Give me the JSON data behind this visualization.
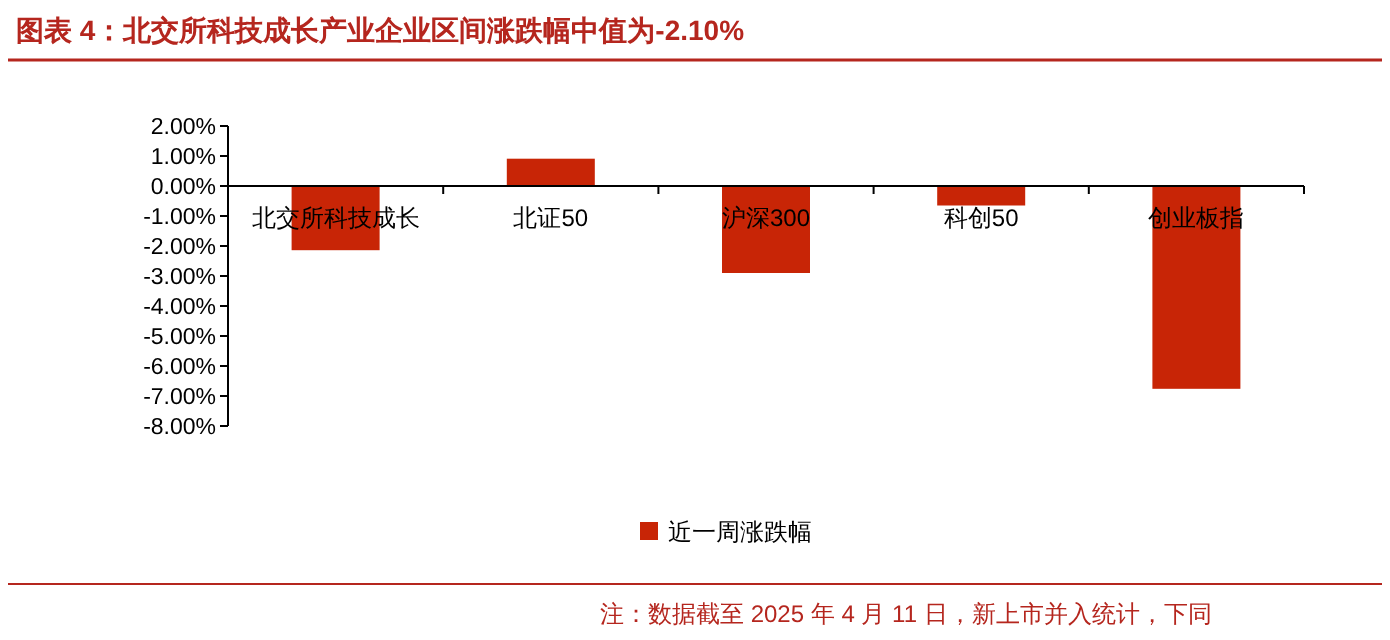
{
  "chart_data": {
    "type": "bar",
    "title": "图表 4：北交所科技成长产业企业区间涨跌幅中值为-2.10%",
    "categories": [
      "北交所科技成长",
      "北证50",
      "沪深300",
      "科创50",
      "创业板指"
    ],
    "series": [
      {
        "name": "近一周涨跌幅",
        "color": "#c82506",
        "values": [
          -2.14,
          0.91,
          -2.9,
          -0.65,
          -6.76
        ]
      }
    ],
    "ylim": [
      -8,
      2
    ],
    "yticks": [
      {
        "value": 2,
        "label": "2.00%"
      },
      {
        "value": 1,
        "label": "1.00%"
      },
      {
        "value": 0,
        "label": "0.00%"
      },
      {
        "value": -1,
        "label": "-1.00%"
      },
      {
        "value": -2,
        "label": "-2.00%"
      },
      {
        "value": -3,
        "label": "-3.00%"
      },
      {
        "value": -4,
        "label": "-4.00%"
      },
      {
        "value": -5,
        "label": "-5.00%"
      },
      {
        "value": -6,
        "label": "-6.00%"
      },
      {
        "value": -7,
        "label": "-7.00%"
      },
      {
        "value": -8,
        "label": "-8.00%"
      }
    ],
    "grid": false,
    "legend": "bottom",
    "annotations": [
      "注：数据截至 2025 年 4 月 11 日，新上市并入统计，下同"
    ]
  }
}
